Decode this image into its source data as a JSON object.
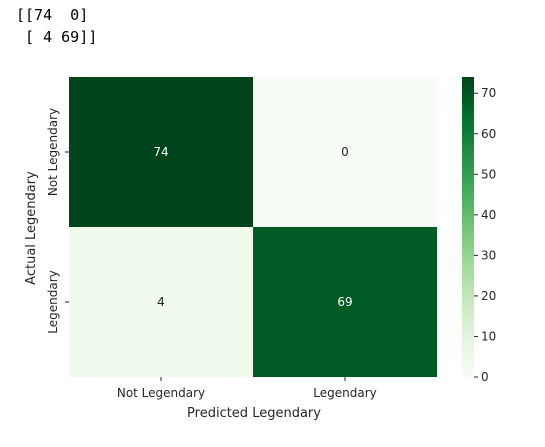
{
  "console_output": {
    "line1": "[[74  0]",
    "line2": " [ 4 69]]"
  },
  "chart_data": {
    "type": "heatmap",
    "title": "",
    "xlabel": "Predicted Legendary",
    "ylabel": "Actual Legendary",
    "x_categories": [
      "Not Legendary",
      "Legendary"
    ],
    "y_categories": [
      "Not Legendary",
      "Legendary"
    ],
    "values": [
      [
        74,
        0
      ],
      [
        4,
        69
      ]
    ],
    "annotations": [
      [
        "74",
        "0"
      ],
      [
        "4",
        "69"
      ]
    ],
    "colormap": "Greens",
    "vmin": 0,
    "vmax": 74,
    "colorbar_ticks": [
      0,
      10,
      20,
      30,
      40,
      50,
      60,
      70
    ],
    "colorbar_tick_labels": [
      "0",
      "10",
      "20",
      "30",
      "40",
      "50",
      "60",
      "70"
    ]
  }
}
